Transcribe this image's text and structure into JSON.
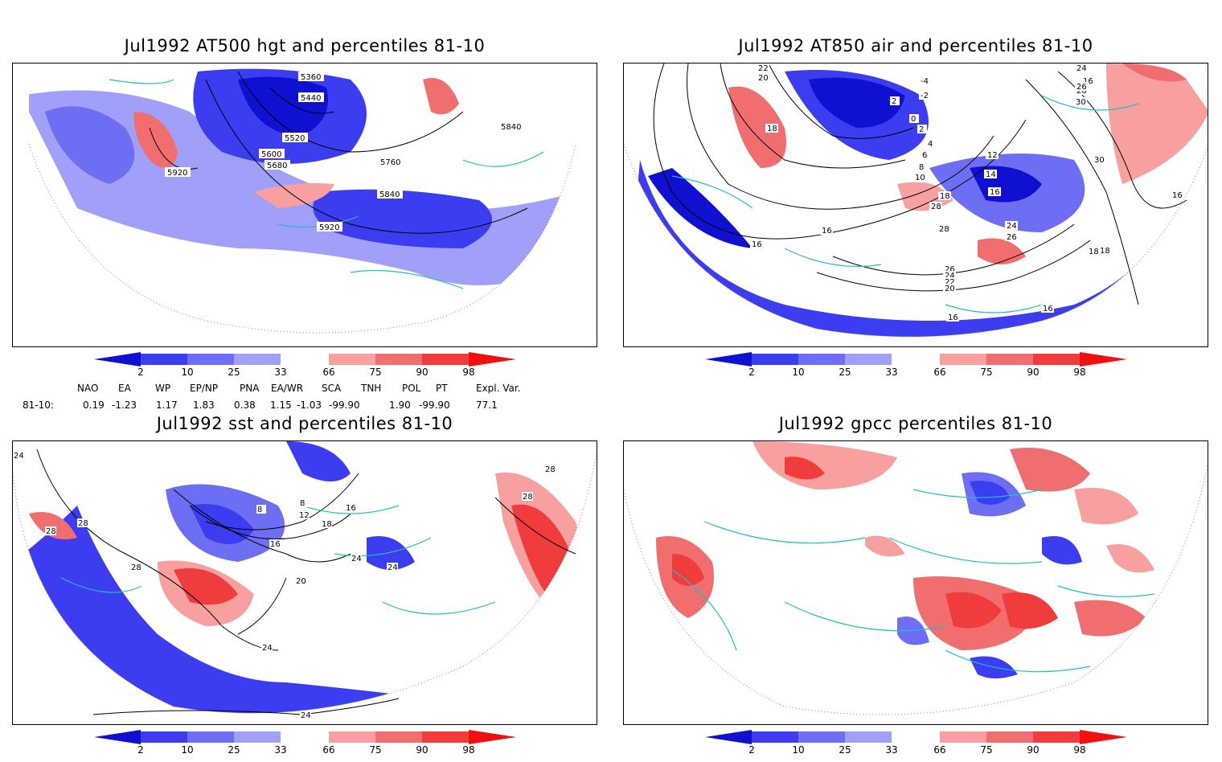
{
  "panels": [
    {
      "title": "Jul1992 AT500 hgt and percentiles 81-10",
      "contour_labels": [
        "5360",
        "5440",
        "5520",
        "5600",
        "5680",
        "5760",
        "5840",
        "5840",
        "5920",
        "5920"
      ]
    },
    {
      "title": "Jul1992 AT850 air and percentiles 81-10",
      "contour_labels": [
        "22",
        "20",
        "-4",
        "-2",
        "2",
        "0",
        "2",
        "4",
        "6",
        "8",
        "10",
        "12",
        "14",
        "16",
        "18",
        "18",
        "16",
        "28",
        "24",
        "26",
        "30",
        "16",
        "18",
        "26",
        "24",
        "22",
        "20",
        "16",
        "16",
        "16",
        "28",
        "24",
        "26",
        "30",
        "16",
        "18",
        "26"
      ]
    },
    {
      "title": "Jul1992 sst and percentiles 81-10",
      "contour_labels": [
        "24",
        "28",
        "28",
        "28",
        "8",
        "8",
        "12",
        "16",
        "16",
        "18",
        "20",
        "24",
        "24",
        "24",
        "28",
        "24",
        "28"
      ]
    },
    {
      "title": "Jul1992 gpcc percentiles 81-10",
      "contour_labels": []
    }
  ],
  "colorbar": {
    "ticks": [
      "2",
      "10",
      "25",
      "33",
      "66",
      "75",
      "90",
      "98"
    ],
    "colors": [
      "#1010d0",
      "#3c3cf0",
      "#6e6ef5",
      "#a0a0f8",
      "#ffffff",
      "#f8a0a0",
      "#f06e6e",
      "#f03c3c",
      "#f01010"
    ]
  },
  "indices": {
    "headers": [
      "NAO",
      "EA",
      "WP",
      "EP/NP",
      "PNA",
      "EA/WR",
      "SCA",
      "TNH",
      "POL",
      "PT",
      "Expl. Var."
    ],
    "row_label": "81-10:",
    "values": [
      "0.19",
      "-1.23",
      "1.17",
      "1.83",
      "0.38",
      "1.15",
      "-1.03",
      "-99.90",
      "1.90",
      "-99.90",
      "77.1"
    ]
  },
  "colors": {
    "coast": "#20c0c0",
    "blue": "#3c3cf0",
    "red": "#f06e6e"
  }
}
